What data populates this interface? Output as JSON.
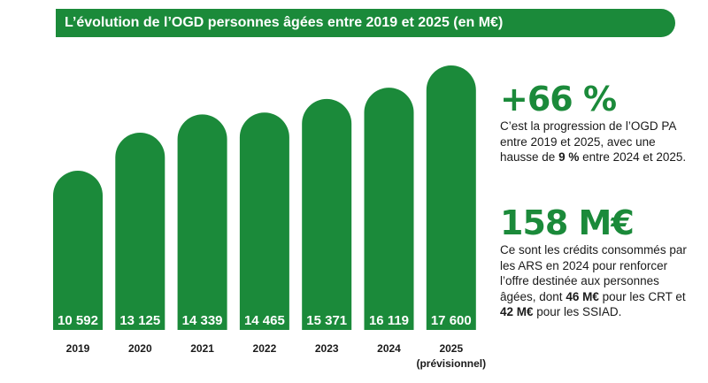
{
  "title": "L’évolution de l’OGD personnes âgées entre 2019 et 2025 (en M€)",
  "colors": {
    "accent": "#1b8a3a"
  },
  "chart_data": {
    "type": "bar",
    "categories": [
      "2019",
      "2020",
      "2021",
      "2022",
      "2023",
      "2024",
      "2025"
    ],
    "category_note": "(prévisionnel)",
    "values": [
      10592,
      13125,
      14339,
      14465,
      15371,
      16119,
      17600
    ],
    "value_labels": [
      "10 592",
      "13 125",
      "14 339",
      "14 465",
      "15 371",
      "16 119",
      "17 600"
    ],
    "ylim": [
      0,
      17600
    ],
    "grid": false,
    "legend": "none"
  },
  "stat1": {
    "figure": "+66 %",
    "text_before": "C’est la progression de l’OGD PA entre 2019 et 2025, avec une hausse de ",
    "text_bold": "9 %",
    "text_after": " entre 2024 et 2025."
  },
  "stat2": {
    "figure": "158 M€",
    "text_before": "Ce sont les crédits consommés par les ARS en 2024 pour renforcer l’offre destinée aux personnes âgées, dont ",
    "bold1": "46 M€",
    "text_mid": " pour les CRT et ",
    "bold2": "42 M€",
    "text_after": " pour les SSIAD."
  }
}
